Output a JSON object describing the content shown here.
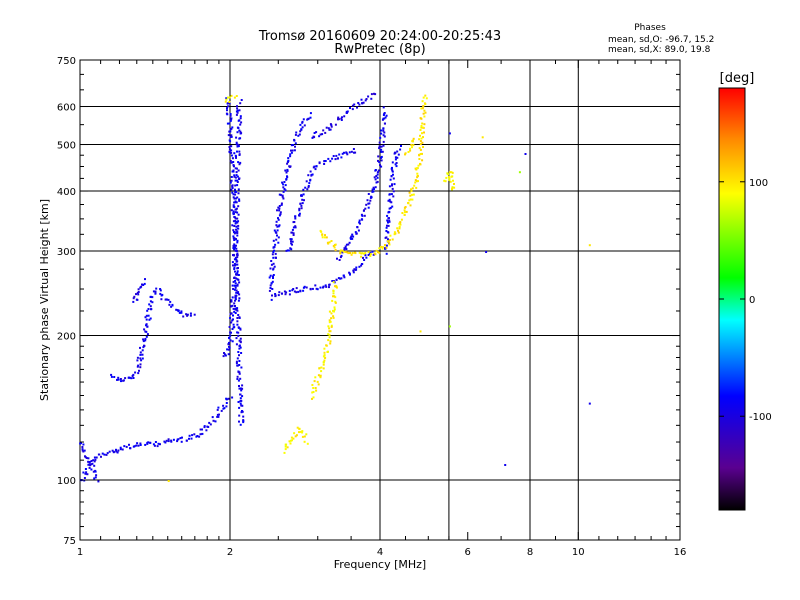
{
  "header": {
    "title": "Tromsø 20160609 20:24:00-20:25:43",
    "subtitle": "RwPretec (8p)",
    "stats_title": "Phases",
    "stats_line1": "mean, sd,O: -96.7, 15.2",
    "stats_line2": "mean, sd,X:  89.0, 19.8"
  },
  "chart_data": {
    "type": "scatter",
    "title": "Tromsø 20160609 20:24:00-20:25:43",
    "subtitle": "RwPretec (8p)",
    "xlabel": "Frequency [MHz]",
    "ylabel": "Stationary phase Virtual Height [km]",
    "x_scale": "log",
    "y_scale": "log",
    "xlim": [
      1,
      16
    ],
    "ylim": [
      75,
      750
    ],
    "x_ticks": [
      {
        "value": 1,
        "label": "1"
      },
      {
        "value": 2,
        "label": "2"
      },
      {
        "value": 4,
        "label": "4"
      },
      {
        "value": 6,
        "label": "6"
      },
      {
        "value": 8,
        "label": "8"
      },
      {
        "value": 10,
        "label": "10"
      },
      {
        "value": 16,
        "label": "16"
      }
    ],
    "x_gridlines": [
      2,
      4,
      5.5,
      8,
      10
    ],
    "y_ticks": [
      {
        "value": 75,
        "label": "75"
      },
      {
        "value": 100,
        "label": "100"
      },
      {
        "value": 200,
        "label": "200"
      },
      {
        "value": 300,
        "label": "300"
      },
      {
        "value": 400,
        "label": "400"
      },
      {
        "value": 500,
        "label": "500"
      },
      {
        "value": 600,
        "label": "600"
      },
      {
        "value": 750,
        "label": "750"
      }
    ],
    "y_gridlines": [
      100,
      200,
      300,
      400,
      500,
      600
    ],
    "grid": true,
    "colorbar": {
      "label": "[deg]",
      "range": [
        -180,
        180
      ],
      "ticks": [
        {
          "value": 100,
          "label": "100"
        },
        {
          "value": 0,
          "label": "0"
        },
        {
          "value": -100,
          "label": "-100"
        }
      ]
    },
    "traces": [
      {
        "phase": -100,
        "points": [
          [
            1.0,
            100
          ],
          [
            1.05,
            110
          ],
          [
            1.1,
            113
          ],
          [
            1.2,
            117
          ],
          [
            1.3,
            119
          ],
          [
            1.4,
            119
          ],
          [
            1.5,
            121
          ],
          [
            1.6,
            122
          ],
          [
            1.7,
            124
          ],
          [
            1.8,
            130
          ],
          [
            1.9,
            140
          ],
          [
            2.0,
            150
          ]
        ]
      },
      {
        "phase": -100,
        "points": [
          [
            1.0,
            120
          ],
          [
            1.03,
            112
          ],
          [
            1.06,
            105
          ],
          [
            1.08,
            100
          ]
        ]
      },
      {
        "phase": -100,
        "points": [
          [
            1.15,
            165
          ],
          [
            1.2,
            163
          ],
          [
            1.25,
            163
          ],
          [
            1.3,
            170
          ],
          [
            1.33,
            190
          ],
          [
            1.36,
            215
          ],
          [
            1.38,
            240
          ],
          [
            1.42,
            250
          ],
          [
            1.5,
            235
          ],
          [
            1.6,
            222
          ],
          [
            1.7,
            222
          ]
        ]
      },
      {
        "phase": -100,
        "points": [
          [
            1.28,
            235
          ],
          [
            1.3,
            250
          ],
          [
            1.35,
            262
          ]
        ]
      },
      {
        "phase": -100,
        "points": [
          [
            1.95,
            180
          ],
          [
            2.0,
            195
          ],
          [
            2.03,
            250
          ],
          [
            2.05,
            350
          ],
          [
            2.07,
            500
          ],
          [
            2.08,
            620
          ]
        ]
      },
      {
        "phase": -100,
        "points": [
          [
            1.97,
            620
          ],
          [
            2.0,
            520
          ],
          [
            2.02,
            420
          ],
          [
            2.04,
            320
          ],
          [
            2.06,
            230
          ],
          [
            2.08,
            170
          ],
          [
            2.1,
            130
          ]
        ]
      },
      {
        "phase": -100,
        "points": [
          [
            2.4,
            240
          ],
          [
            2.5,
            245
          ],
          [
            2.7,
            250
          ],
          [
            2.9,
            252
          ],
          [
            3.1,
            255
          ],
          [
            3.3,
            262
          ],
          [
            3.5,
            272
          ],
          [
            3.7,
            290
          ],
          [
            3.9,
            300
          ]
        ]
      },
      {
        "phase": -100,
        "points": [
          [
            2.4,
            250
          ],
          [
            2.45,
            300
          ],
          [
            2.5,
            370
          ],
          [
            2.6,
            450
          ],
          [
            2.7,
            520
          ],
          [
            2.8,
            560
          ],
          [
            2.9,
            580
          ]
        ]
      },
      {
        "phase": -100,
        "points": [
          [
            2.6,
            300
          ],
          [
            2.7,
            350
          ],
          [
            2.8,
            400
          ],
          [
            2.9,
            440
          ],
          [
            3.0,
            460
          ],
          [
            3.2,
            470
          ],
          [
            3.4,
            480
          ],
          [
            3.6,
            490
          ]
        ]
      },
      {
        "phase": -105,
        "points": [
          [
            2.9,
            520
          ],
          [
            3.1,
            540
          ],
          [
            3.3,
            570
          ],
          [
            3.5,
            600
          ],
          [
            3.7,
            620
          ],
          [
            3.9,
            640
          ]
        ]
      },
      {
        "phase": -100,
        "points": [
          [
            3.3,
            290
          ],
          [
            3.5,
            320
          ],
          [
            3.7,
            360
          ],
          [
            3.9,
            420
          ],
          [
            4.0,
            480
          ],
          [
            4.05,
            560
          ],
          [
            4.1,
            600
          ]
        ]
      },
      {
        "phase": -100,
        "points": [
          [
            4.1,
            300
          ],
          [
            4.15,
            350
          ],
          [
            4.2,
            400
          ],
          [
            4.25,
            450
          ],
          [
            4.3,
            480
          ],
          [
            4.35,
            500
          ]
        ]
      },
      {
        "phase": 100,
        "points": [
          [
            3.0,
            330
          ],
          [
            3.1,
            320
          ],
          [
            3.3,
            300
          ],
          [
            3.5,
            300
          ],
          [
            3.7,
            295
          ],
          [
            3.9,
            300
          ],
          [
            4.1,
            310
          ],
          [
            4.3,
            330
          ],
          [
            4.5,
            370
          ],
          [
            4.7,
            420
          ],
          [
            4.8,
            480
          ],
          [
            4.85,
            560
          ],
          [
            4.9,
            640
          ]
        ]
      },
      {
        "phase": 100,
        "points": [
          [
            4.5,
            480
          ],
          [
            4.6,
            500
          ],
          [
            4.7,
            520
          ]
        ]
      },
      {
        "phase": 95,
        "points": [
          [
            2.55,
            115
          ],
          [
            2.65,
            122
          ],
          [
            2.75,
            128
          ],
          [
            2.85,
            120
          ]
        ]
      },
      {
        "phase": 95,
        "points": [
          [
            2.9,
            150
          ],
          [
            3.0,
            165
          ],
          [
            3.1,
            185
          ],
          [
            3.15,
            200
          ],
          [
            3.2,
            230
          ],
          [
            3.25,
            260
          ]
        ]
      },
      {
        "phase": 90,
        "points": [
          [
            5.4,
            420
          ],
          [
            5.5,
            440
          ],
          [
            5.6,
            400
          ]
        ]
      },
      {
        "phase": 90,
        "points": [
          [
            1.95,
            620
          ],
          [
            2.05,
            640
          ]
        ]
      }
    ],
    "sparse_points": [
      {
        "phase": -100,
        "points": [
          [
            7.1,
            108
          ],
          [
            7.8,
            480
          ],
          [
            5.5,
            530
          ],
          [
            10.5,
            145
          ],
          [
            6.5,
            300
          ]
        ]
      },
      {
        "phase": 55,
        "points": [
          [
            7.6,
            440
          ],
          [
            5.5,
            210
          ]
        ]
      },
      {
        "phase": 100,
        "points": [
          [
            4.8,
            205
          ],
          [
            5.5,
            440
          ],
          [
            10.5,
            310
          ],
          [
            6.4,
            520
          ],
          [
            1.5,
            100
          ]
        ]
      }
    ]
  }
}
